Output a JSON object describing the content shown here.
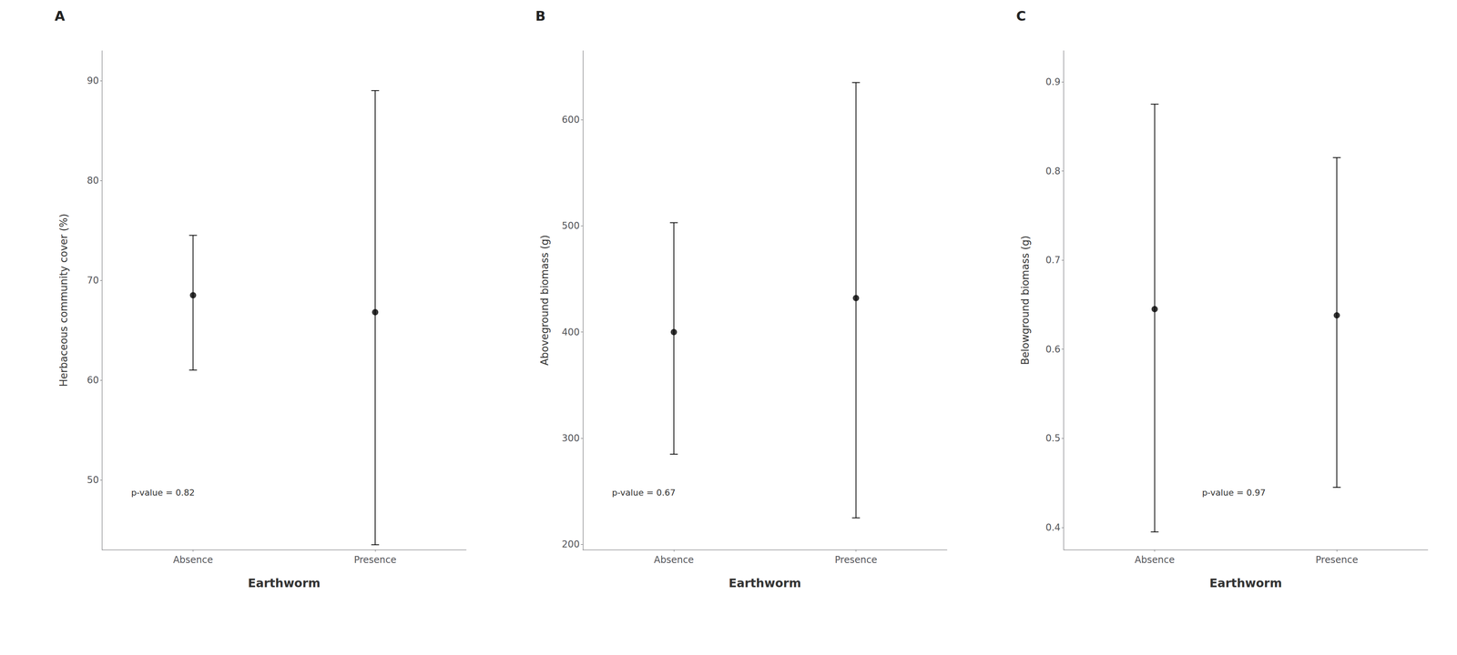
{
  "chart_data": [
    {
      "type": "scatter",
      "title": "A",
      "xlabel": "Earthworm",
      "ylabel": "Herbaceous community cover (%)",
      "annotation": "p-value = 0.82",
      "categories": [
        "Absence",
        "Presence"
      ],
      "values": [
        68.5,
        66.8
      ],
      "ci_lower": [
        61.0,
        43.5
      ],
      "ci_upper": [
        74.5,
        89.0
      ],
      "color": "#000000",
      "ylim": [
        43,
        93
      ],
      "yticks": [
        50,
        60,
        70,
        80,
        90
      ],
      "grid": false
    },
    {
      "type": "scatter",
      "title": "B",
      "xlabel": "Earthworm",
      "ylabel": "Aboveground biomass (g)",
      "annotation": "p-value = 0.67",
      "categories": [
        "Absence",
        "Presence"
      ],
      "values": [
        400,
        432
      ],
      "ci_lower": [
        285,
        225
      ],
      "ci_upper": [
        503,
        635
      ],
      "color": "#000000",
      "ylim": [
        195,
        665
      ],
      "yticks": [
        200,
        300,
        400,
        500,
        600
      ],
      "grid": false
    },
    {
      "type": "scatter",
      "title": "C",
      "xlabel": "Earthworm",
      "ylabel": "Belowground biomass (g)",
      "annotation": "p-value = 0.97",
      "categories": [
        "Absence",
        "Presence"
      ],
      "values": [
        0.645,
        0.638
      ],
      "ci_lower": [
        0.395,
        0.445
      ],
      "ci_upper": [
        0.875,
        0.815
      ],
      "color": "#000000",
      "ylim": [
        0.375,
        0.935
      ],
      "yticks": [
        0.4,
        0.5,
        0.6,
        0.7,
        0.8,
        0.9
      ],
      "grid": false
    }
  ]
}
